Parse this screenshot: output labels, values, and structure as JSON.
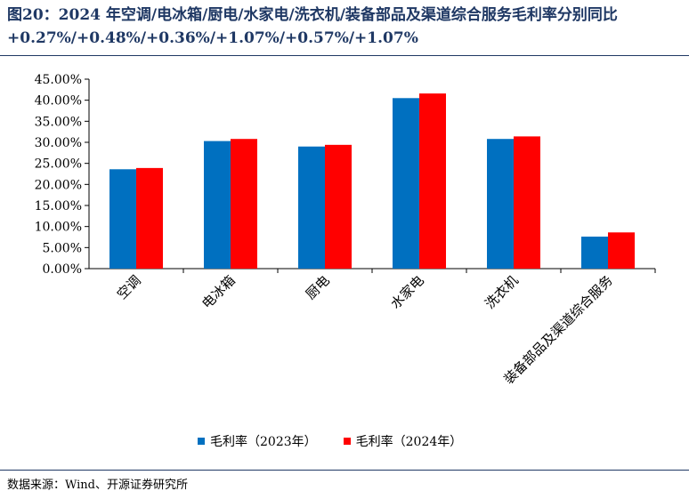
{
  "title": "图20：2024 年空调/电冰箱/厨电/水家电/洗衣机/装备部品及渠道综合服务毛利率分别同比+0.27%/+0.48%/+0.36%/+1.07%/+0.57%/+1.07%",
  "source": "数据来源：Wind、开源证券研究所",
  "colors": {
    "series_2023": "#0070c0",
    "series_2024": "#ff0000",
    "title": "#1f3864"
  },
  "chart_data": {
    "type": "bar",
    "categories": [
      "空调",
      "电冰箱",
      "厨电",
      "水家电",
      "洗衣机",
      "装备部品及渠道综合服务"
    ],
    "series": [
      {
        "name": "毛利率（2023年）",
        "values": [
          23.6,
          30.3,
          29.0,
          40.5,
          30.8,
          7.6
        ]
      },
      {
        "name": "毛利率（2024年）",
        "values": [
          23.9,
          30.8,
          29.4,
          41.6,
          31.4,
          8.6
        ]
      }
    ],
    "y_ticks": [
      "0.00%",
      "5.00%",
      "10.00%",
      "15.00%",
      "20.00%",
      "25.00%",
      "30.00%",
      "35.00%",
      "40.00%",
      "45.00%"
    ],
    "ylim": [
      0,
      45
    ],
    "grid": false,
    "legend_position": "bottom"
  }
}
